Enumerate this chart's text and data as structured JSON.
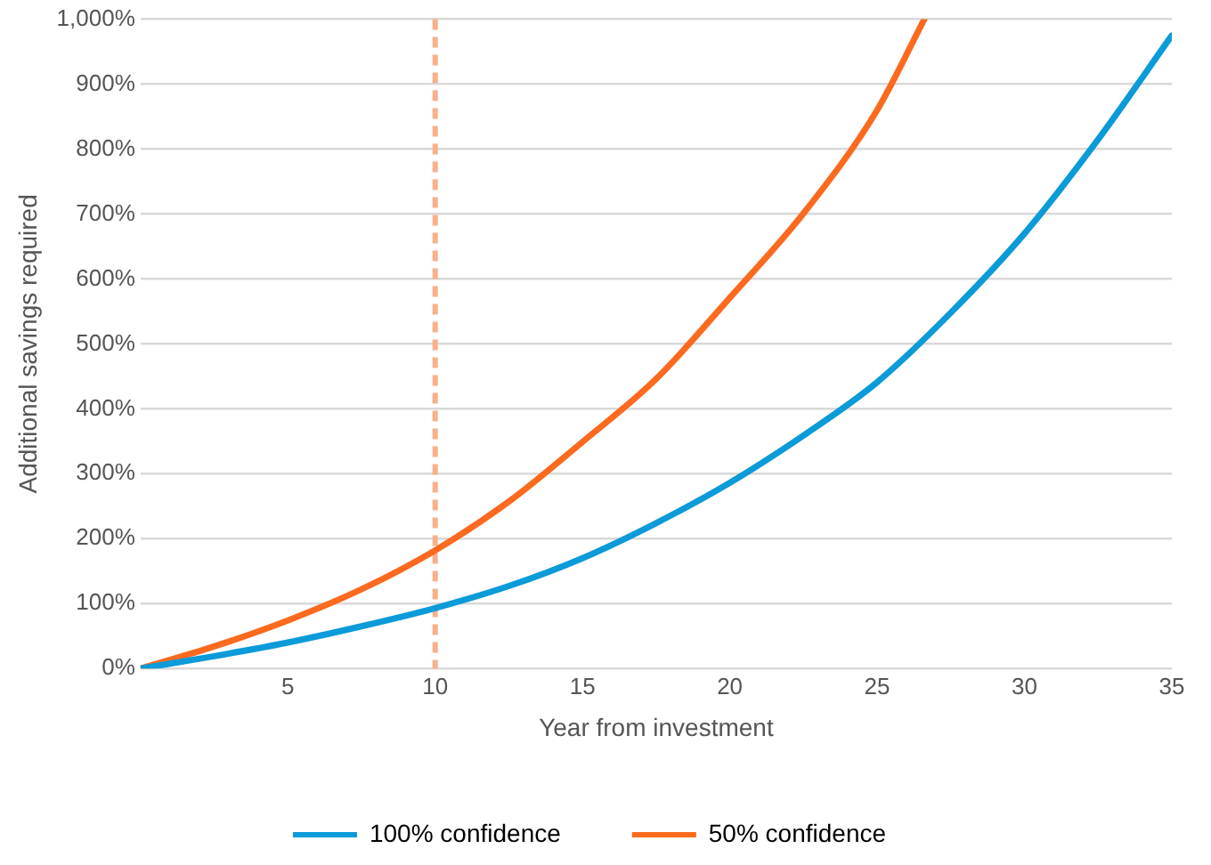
{
  "chart_data": {
    "type": "line",
    "xlabel": "Year from investment",
    "ylabel": "Additional savings required",
    "xlim": [
      0,
      35
    ],
    "xticks": [
      5,
      10,
      15,
      20,
      25,
      30,
      35
    ],
    "ylim": [
      0,
      1000
    ],
    "yticks": [
      {
        "value": 0,
        "label": "0%"
      },
      {
        "value": 100,
        "label": "100%"
      },
      {
        "value": 200,
        "label": "200%"
      },
      {
        "value": 300,
        "label": "300%"
      },
      {
        "value": 400,
        "label": "400%"
      },
      {
        "value": 500,
        "label": "500%"
      },
      {
        "value": 600,
        "label": "600%"
      },
      {
        "value": 700,
        "label": "700%"
      },
      {
        "value": 800,
        "label": "800%"
      },
      {
        "value": 900,
        "label": "900%"
      },
      {
        "value": 1000,
        "label": "1,000%"
      }
    ],
    "grid": "y",
    "legend": "bottom",
    "marker": "none",
    "line_style": "solid",
    "series": [
      {
        "name": "100% confidence",
        "color": "#0a9bd8",
        "x": [
          0,
          2.5,
          5,
          7.5,
          10,
          12.5,
          15,
          17.5,
          20,
          22.5,
          25,
          27.5,
          30,
          32.5,
          35
        ],
        "values": [
          0,
          19,
          40,
          65,
          93,
          127,
          170,
          224,
          286,
          359,
          441,
          548,
          670,
          815,
          975
        ]
      },
      {
        "name": "50% confidence",
        "color": "#fb6a1e",
        "x": [
          0,
          2.5,
          5,
          7.5,
          10,
          12.5,
          15,
          17.5,
          20,
          22.5,
          25,
          26.6
        ],
        "values": [
          0,
          34,
          74,
          122,
          182,
          257,
          349,
          446,
          571,
          701,
          860,
          1000
        ]
      }
    ],
    "ref_lines": [
      {
        "axis": "x",
        "value": 10,
        "color": "#f9b08a",
        "line_style": "dashed"
      }
    ]
  }
}
